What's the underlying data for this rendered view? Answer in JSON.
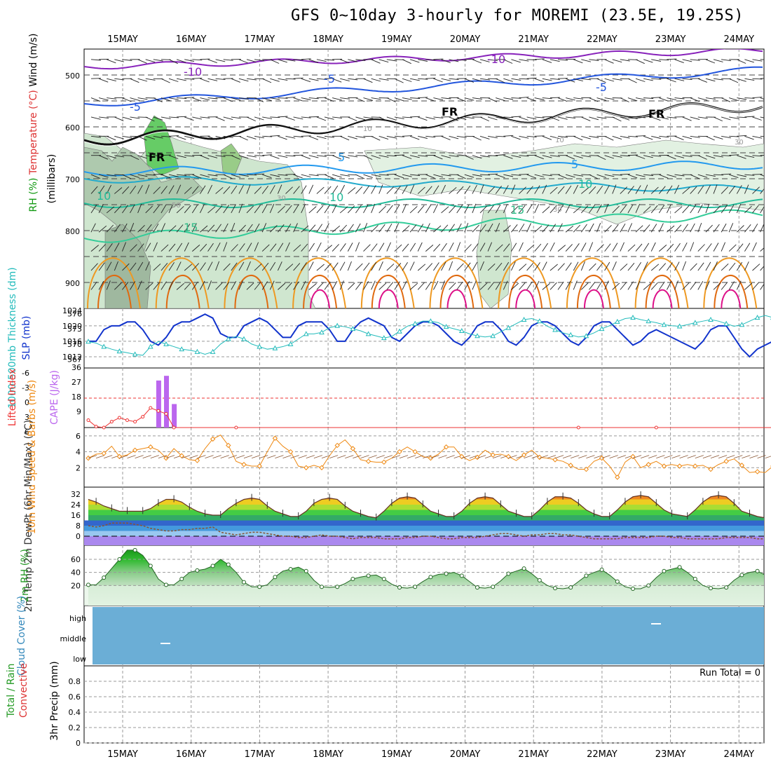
{
  "title": "GFS 0~10day 3-hourly for MOREMI (23.5E, 19.25S)",
  "dates": [
    "15MAY",
    "16MAY",
    "17MAY",
    "18MAY",
    "19MAY",
    "20MAY",
    "21MAY",
    "22MAY",
    "23MAY",
    "24MAY"
  ],
  "run_total": "Run Total = 0",
  "colors": {
    "purple": "#8822bb",
    "blue": "#2255dd",
    "lightblue": "#2299ee",
    "teal": "#22bb99",
    "orange": "#ee9922",
    "darkorange": "#e06a10",
    "magenta": "#dd1188",
    "green": "#33bb33",
    "slp": "#1133cc",
    "thick": "#22bbbb",
    "cape": "#bb66ee",
    "li": "#ee3333",
    "wind10": "#ee8811",
    "cloud": "#6baed6",
    "dewpt": "#885533"
  },
  "chart_data": [
    {
      "id": "upper",
      "type": "heatmap",
      "ylabel_parts": [
        "RH (%)",
        "Temperature (°C)",
        "Wind (m/s)"
      ],
      "ylabel2": "(millibars)",
      "yticks": [
        500,
        600,
        700,
        800,
        900
      ],
      "ylim": [
        450,
        950
      ],
      "isotherm_labels": [
        "-10",
        "-10",
        "-5",
        "-5",
        "-5",
        "FR",
        "FR",
        "FR",
        "5",
        "5",
        "10",
        "10",
        "10",
        "15",
        "15",
        "10",
        "30",
        "30",
        "30",
        "50",
        "10"
      ]
    },
    {
      "id": "slp_thickness",
      "type": "line",
      "ylabel_left": "1000-500mb Thickness (dm)",
      "ylabel_right": "SLP (mb)",
      "yticks_thickness": [
        567,
        570,
        573,
        576
      ],
      "yticks_slp": [
        1012,
        1016,
        1020,
        1024
      ],
      "series": [
        {
          "name": "SLP (mb)",
          "values": [
            1016,
            1016,
            1019,
            1020,
            1020,
            1021,
            1021,
            1019,
            1016,
            1015,
            1017,
            1020,
            1021,
            1021,
            1022,
            1023,
            1022,
            1018,
            1017,
            1017,
            1020,
            1021,
            1022,
            1021,
            1019,
            1017,
            1017,
            1020,
            1021,
            1021,
            1021,
            1019,
            1016,
            1016,
            1019,
            1021,
            1022,
            1021,
            1020,
            1017,
            1016,
            1018,
            1020,
            1021,
            1021,
            1020,
            1018,
            1016,
            1015,
            1017,
            1020,
            1021,
            1021,
            1019,
            1016,
            1015,
            1017,
            1020,
            1021,
            1021,
            1020,
            1018,
            1016,
            1015,
            1017,
            1020,
            1021,
            1021,
            1019,
            1017,
            1015,
            1016,
            1018,
            1019,
            1018,
            1017,
            1016,
            1015,
            1014,
            1016,
            1019,
            1020,
            1020,
            1017,
            1014,
            1012,
            1014,
            1015,
            1016
          ]
        },
        {
          "name": "1000-500mb Thickness (dm)",
          "values": [
            570.5,
            570.2,
            569.5,
            569,
            568.6,
            568.3,
            568,
            567.8,
            569.5,
            570.5,
            570,
            569.5,
            569,
            568.8,
            568.5,
            568,
            568.5,
            570,
            571,
            571.5,
            571,
            570,
            569.5,
            569,
            569.2,
            569.5,
            570,
            571,
            572,
            572,
            572.3,
            573.2,
            573.6,
            573.4,
            573,
            572.6,
            572,
            571.6,
            571.2,
            571.5,
            572.5,
            573.5,
            574,
            574.5,
            574.5,
            574.2,
            573.4,
            573,
            572.6,
            572,
            571.6,
            571.4,
            571.6,
            572.4,
            573.2,
            574,
            574.8,
            575,
            574.5,
            573.5,
            572.8,
            572.2,
            571.8,
            571.4,
            571.6,
            572.2,
            573,
            573.6,
            574.4,
            575,
            575.2,
            574.8,
            574.5,
            574.2,
            573.8,
            573.6,
            573.5,
            573.8,
            574.2,
            574.5,
            574.8,
            574.5,
            574,
            573.5,
            573.8,
            574.5,
            575.2,
            575.6,
            575.2
          ]
        }
      ]
    },
    {
      "id": "cape_li",
      "type": "bar",
      "ylabel_left": "Lifted Index",
      "ylabel_right": "CAPE (J/kg)",
      "yticks_li": [
        "-6",
        "-3",
        "0",
        "3",
        "6"
      ],
      "yticks_cape": [
        "9",
        "18",
        "27",
        "36"
      ],
      "series": [
        {
          "name": "CAPE (J/kg)",
          "values": [
            0,
            0,
            0,
            0,
            0,
            0,
            0,
            0,
            0,
            30,
            33,
            15,
            0,
            0,
            0,
            0,
            0,
            0,
            0,
            0,
            0,
            0,
            0,
            0,
            0,
            0,
            0,
            0,
            0,
            0,
            0,
            0,
            0,
            0,
            0,
            0,
            0,
            0,
            0,
            0,
            0,
            0,
            0,
            0,
            0,
            0,
            0,
            0,
            0,
            0,
            0,
            0,
            0,
            0,
            0,
            0,
            0,
            0,
            0,
            0,
            0,
            0,
            0,
            0,
            0,
            0,
            0,
            0,
            0,
            0,
            0,
            0,
            0,
            0,
            0,
            0,
            0,
            0,
            0,
            0,
            0,
            0,
            0,
            0,
            0,
            0,
            0,
            0,
            0
          ]
        },
        {
          "name": "Lifted Index",
          "values": [
            4.5,
            5.8,
            6.5,
            4.8,
            4,
            4.5,
            4.8,
            3.8,
            2,
            2.6,
            3.2,
            6.6,
            7,
            7,
            7,
            7,
            7,
            7,
            7,
            6.6,
            7,
            7,
            7,
            7,
            7,
            7,
            7,
            7,
            7,
            7,
            7,
            7,
            7,
            7,
            7,
            7,
            7,
            7,
            7,
            7,
            7,
            7,
            7,
            7,
            7,
            7,
            7,
            7,
            7,
            7,
            7,
            7,
            7,
            7,
            7,
            7,
            7,
            7,
            7,
            7,
            7,
            7,
            7,
            6.6,
            7,
            7,
            7,
            7,
            7,
            7,
            7,
            7,
            7,
            6.6,
            7,
            7,
            7,
            7,
            7,
            7,
            7,
            7,
            7,
            7,
            7,
            7,
            7,
            7,
            7
          ]
        }
      ]
    },
    {
      "id": "wind10m",
      "type": "line",
      "ylabel": "10m Wind Speed & Barbs (m/s)",
      "yticks": [
        2,
        4,
        6
      ],
      "series": [
        {
          "name": "10m Wind Speed",
          "values": [
            3.2,
            3.7,
            3.8,
            4.7,
            3.4,
            3.6,
            4.2,
            4.4,
            4.6,
            4.2,
            3.2,
            4.4,
            3.5,
            3,
            2.9,
            4.4,
            5.6,
            6.1,
            4.8,
            2.8,
            2.4,
            2.2,
            2.2,
            4,
            5.7,
            4.7,
            4,
            2.2,
            2,
            2.3,
            2,
            3.5,
            4.8,
            5.5,
            4.4,
            3,
            2.8,
            2.7,
            2.7,
            3.2,
            4,
            4.6,
            4,
            3.4,
            3.2,
            3.7,
            4.6,
            4.6,
            3.4,
            2.9,
            3.3,
            4.2,
            3.6,
            3.7,
            3.4,
            2.9,
            3.6,
            4.2,
            3.3,
            3.2,
            3,
            2.8,
            2.3,
            1.8,
            1.8,
            2.8,
            3.2,
            2.2,
            0.8,
            2.7,
            3.4,
            2,
            2.4,
            2.8,
            2.2,
            2.4,
            2.2,
            2.4,
            2.2,
            2.3,
            1.8,
            2.4,
            2.8,
            3.1,
            2.3,
            1.4,
            1.5,
            1.4,
            2.2
          ]
        }
      ]
    },
    {
      "id": "temp2m",
      "type": "area",
      "ylabel": "2m Temp 2m DewPt (6hr Min/Max) (°C)",
      "yticks": [
        0,
        8,
        16,
        24,
        32
      ],
      "series": [
        {
          "name": "2m Temp",
          "values": [
            28,
            26,
            23,
            21,
            19,
            19,
            19,
            19,
            21,
            25,
            28,
            28,
            26,
            22,
            19,
            17,
            16,
            16,
            21,
            25,
            28,
            29,
            28,
            23,
            19,
            17,
            15,
            15,
            19,
            25,
            28,
            29,
            28,
            23,
            19,
            17,
            15,
            14,
            19,
            25,
            29,
            30,
            29,
            24,
            19,
            17,
            15,
            15,
            19,
            25,
            29,
            30,
            29,
            24,
            19,
            17,
            15,
            15,
            20,
            26,
            30,
            30,
            29,
            25,
            20,
            17,
            15,
            15,
            20,
            26,
            30,
            31,
            30,
            25,
            20,
            17,
            16,
            15,
            20,
            26,
            30,
            31,
            30,
            25,
            19,
            17,
            15,
            14,
            15
          ]
        },
        {
          "name": "2m DewPt",
          "values": [
            8,
            7,
            8,
            10,
            10,
            10,
            9,
            8,
            6,
            5,
            4,
            4,
            5,
            5,
            6,
            6,
            7,
            3,
            2,
            1,
            2,
            3,
            3,
            2,
            1,
            0,
            0,
            -1,
            -1,
            0,
            1,
            0,
            0,
            -1,
            -2,
            -1,
            -1,
            -1,
            -2,
            -2,
            -2,
            -1,
            -1,
            0,
            0,
            -1,
            -2,
            -2,
            -1,
            -1,
            -1,
            0,
            1,
            2,
            2,
            1,
            0,
            1,
            1,
            2,
            2,
            1,
            1,
            0,
            -1,
            -2,
            -2,
            -2,
            -2,
            -1,
            -1,
            -1,
            -1,
            0,
            0,
            -1,
            -1,
            -2,
            -2,
            -2,
            -2,
            -2,
            -1,
            -1,
            -1,
            -1,
            -2,
            -2,
            -1
          ]
        }
      ]
    },
    {
      "id": "rh2m",
      "type": "area",
      "ylabel": "2m RH (%)",
      "yticks": [
        20,
        40,
        60
      ],
      "series": [
        {
          "name": "2m RH",
          "values": [
            21,
            21,
            32,
            46,
            60,
            74,
            74,
            66,
            50,
            30,
            21,
            21,
            30,
            40,
            43,
            45,
            50,
            60,
            52,
            40,
            25,
            18,
            18,
            21,
            33,
            42,
            45,
            48,
            42,
            28,
            18,
            17,
            18,
            23,
            30,
            33,
            35,
            36,
            30,
            22,
            17,
            16,
            18,
            26,
            33,
            37,
            38,
            40,
            35,
            26,
            17,
            16,
            18,
            27,
            38,
            42,
            46,
            38,
            28,
            20,
            16,
            15,
            17,
            26,
            35,
            40,
            44,
            36,
            26,
            18,
            15,
            15,
            20,
            32,
            42,
            45,
            48,
            40,
            30,
            20,
            16,
            15,
            17,
            28,
            36,
            40,
            42,
            36,
            26
          ]
        }
      ]
    },
    {
      "id": "cloud",
      "type": "heatmap",
      "ylabel": "Cloud Cover (%)",
      "levels": [
        "high",
        "middle",
        "low"
      ]
    },
    {
      "id": "precip",
      "type": "bar",
      "ylabel_parts": [
        "Total / Rain",
        "Convective"
      ],
      "ylabel2": "3hr Precip (mm)",
      "yticks": [
        0,
        0.2,
        0.4,
        0.6,
        0.8
      ],
      "values": []
    }
  ]
}
